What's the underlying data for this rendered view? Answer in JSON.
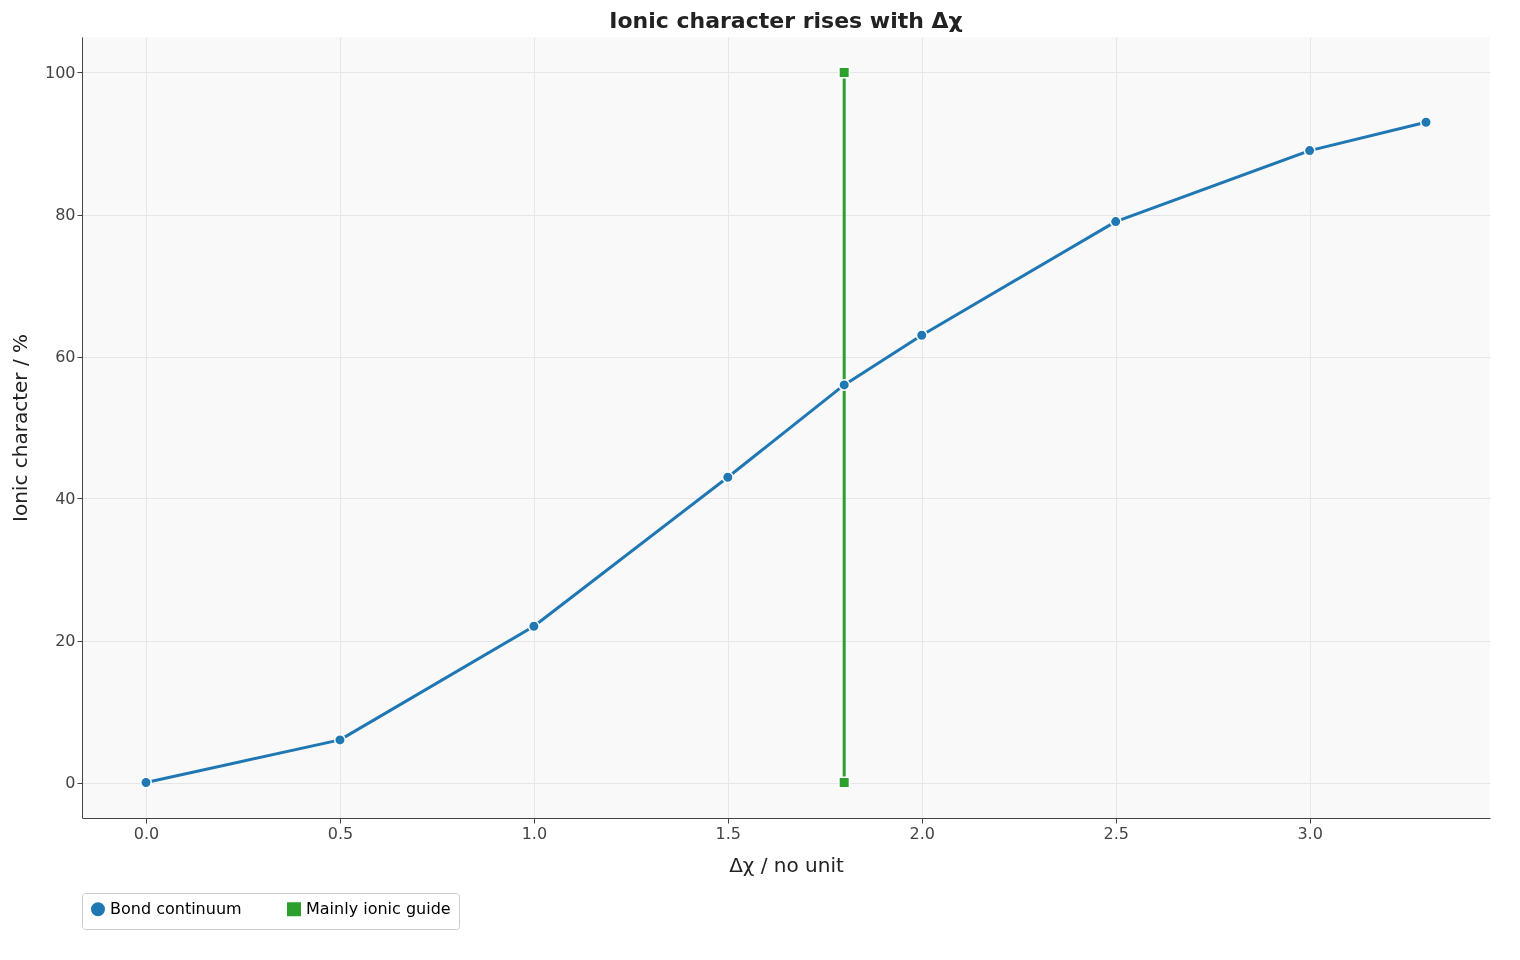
{
  "chart_data": {
    "type": "line",
    "title": "Ionic character rises with Δχ",
    "xlabel": "Δχ / no unit",
    "ylabel": "Ionic character / %",
    "xlim": [
      -0.165,
      3.465
    ],
    "ylim": [
      -5,
      105
    ],
    "xticks": [
      {
        "value": 0,
        "label": "0.0"
      },
      {
        "value": 0.5,
        "label": "0.5"
      },
      {
        "value": 1,
        "label": "1.0"
      },
      {
        "value": 1.5,
        "label": "1.5"
      },
      {
        "value": 2,
        "label": "2.0"
      },
      {
        "value": 2.5,
        "label": "2.5"
      },
      {
        "value": 3,
        "label": "3.0"
      }
    ],
    "yticks": [
      0,
      20,
      40,
      60,
      80,
      100
    ],
    "grid": true,
    "legend": "bottom",
    "series": [
      {
        "name": "Bond continuum",
        "color": "#1f77b4",
        "marker": "circle",
        "x": [
          0,
          0.5,
          1,
          1.5,
          1.8,
          2,
          2.5,
          3,
          3.3
        ],
        "values": [
          0,
          6,
          22,
          43,
          56,
          63,
          79,
          89,
          93
        ]
      },
      {
        "name": "Mainly ionic guide",
        "color": "#2ca02c",
        "marker": "square",
        "x": [
          1.8,
          1.8
        ],
        "values": [
          0,
          100
        ]
      }
    ]
  }
}
